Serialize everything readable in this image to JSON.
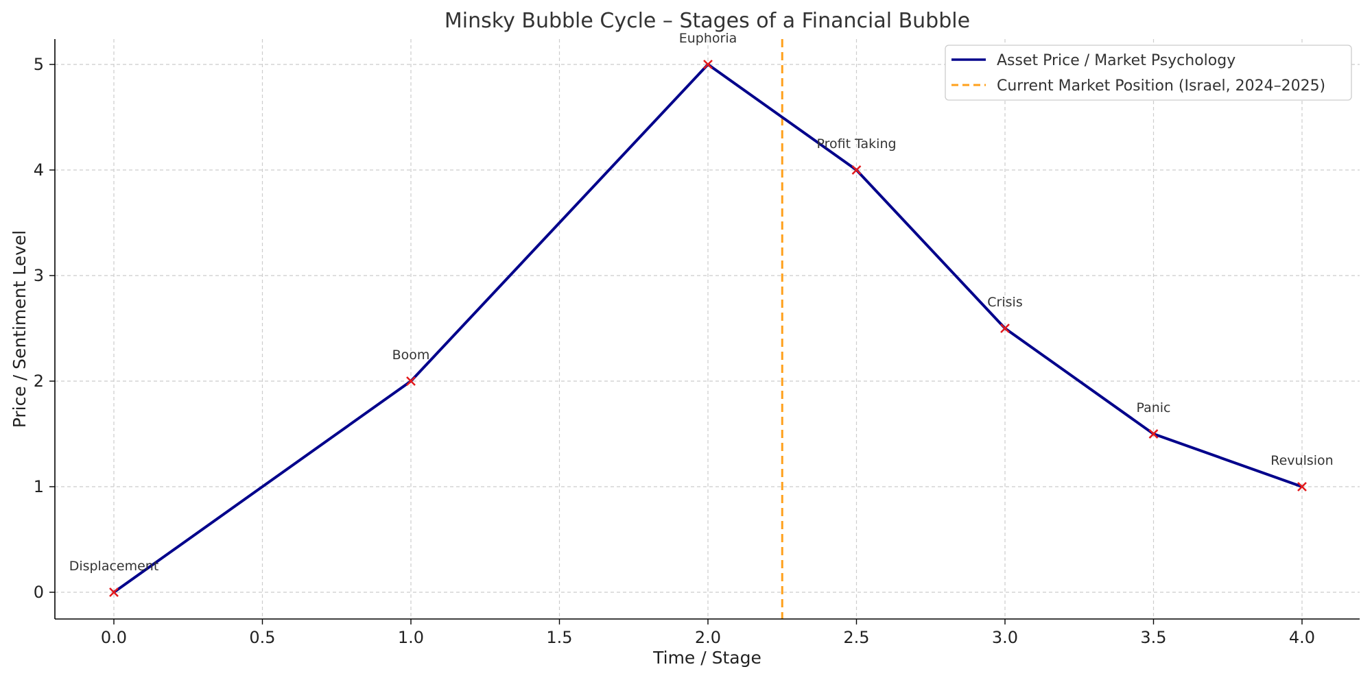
{
  "chart_data": {
    "type": "line",
    "title": "Minsky Bubble Cycle – Stages of a Financial Bubble",
    "xlabel": "Time / Stage",
    "ylabel": "Price / Sentiment Level",
    "xlim": [
      -0.2,
      4.2
    ],
    "ylim": [
      -0.25,
      5.25
    ],
    "x_ticks": [
      "0.0",
      "0.5",
      "1.0",
      "1.5",
      "2.0",
      "2.5",
      "3.0",
      "3.5",
      "4.0"
    ],
    "y_ticks": [
      "0",
      "1",
      "2",
      "3",
      "4",
      "5"
    ],
    "grid": true,
    "legend_position": "top-right",
    "series": [
      {
        "name": "Asset Price / Market Psychology",
        "color": "#00008b",
        "x": [
          0,
          1,
          2,
          2.5,
          3,
          3.5,
          4
        ],
        "y": [
          0,
          2,
          5,
          4,
          2.5,
          1.5,
          1
        ]
      }
    ],
    "markers": {
      "color": "#e31a1c",
      "symbol": "x",
      "points": [
        {
          "x": 0,
          "y": 0,
          "label": "Displacement"
        },
        {
          "x": 1,
          "y": 2,
          "label": "Boom"
        },
        {
          "x": 2,
          "y": 5,
          "label": "Euphoria"
        },
        {
          "x": 2.5,
          "y": 4,
          "label": "Profit Taking"
        },
        {
          "x": 3,
          "y": 2.5,
          "label": "Crisis"
        },
        {
          "x": 3.5,
          "y": 1.5,
          "label": "Panic"
        },
        {
          "x": 4,
          "y": 1,
          "label": "Revulsion"
        }
      ]
    },
    "vline": {
      "x": 2.25,
      "name": "Current Market Position (Israel, 2024–2025)",
      "color": "#ffa01c",
      "style": "dashed"
    }
  }
}
